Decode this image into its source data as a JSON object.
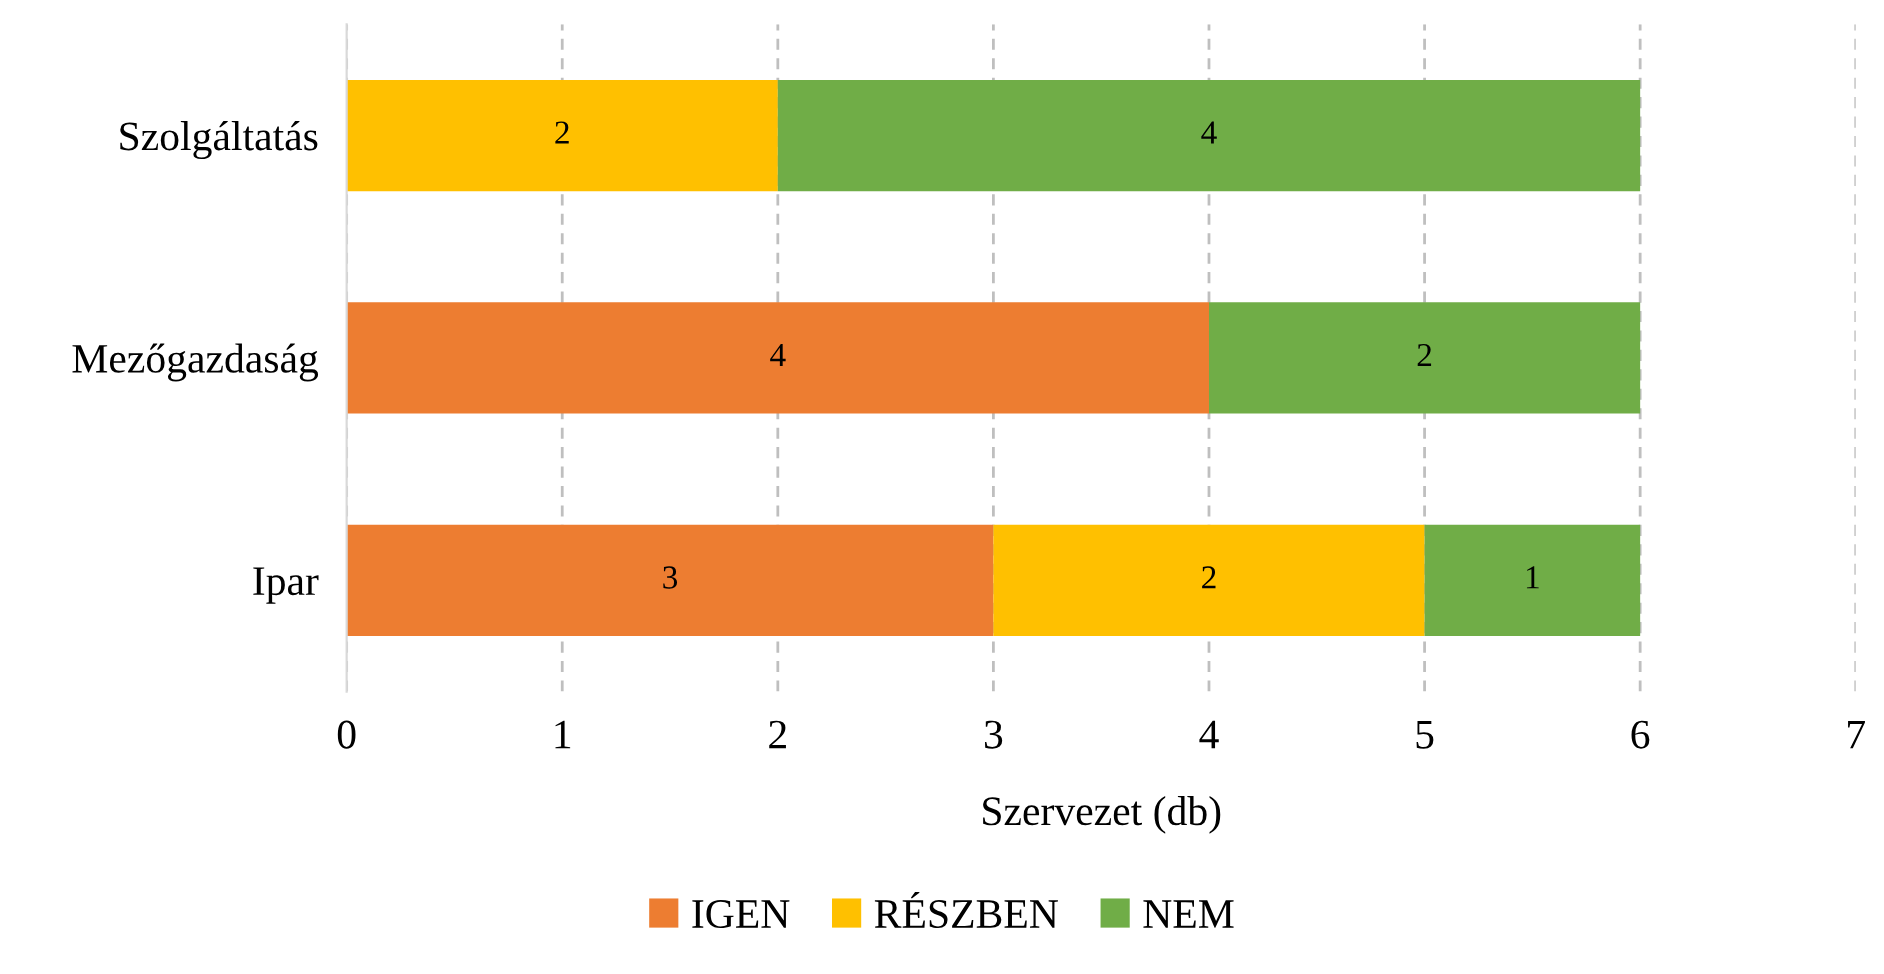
{
  "chart_data": {
    "type": "bar",
    "orientation": "horizontal",
    "stacked": true,
    "categories": [
      "Szolgáltatás",
      "Mezőgazdaság",
      "Ipar"
    ],
    "series": [
      {
        "name": "IGEN",
        "color": "#ed7d31",
        "values": [
          0,
          4,
          3
        ],
        "value_labels": [
          null,
          "4",
          "3"
        ]
      },
      {
        "name": "RÉSZBEN",
        "color": "#ffc000",
        "values": [
          2,
          0,
          2
        ],
        "value_labels": [
          "2",
          null,
          "2"
        ]
      },
      {
        "name": "NEM",
        "color": "#70ad47",
        "values": [
          4,
          2,
          1
        ],
        "value_labels": [
          "4",
          "2",
          "1"
        ]
      }
    ],
    "xlabel": "Szervezet (db)",
    "xlim": [
      0,
      7
    ],
    "xticks": [
      0,
      1,
      2,
      3,
      4,
      5,
      6,
      7
    ],
    "grid": "x",
    "legend": "bottom"
  }
}
